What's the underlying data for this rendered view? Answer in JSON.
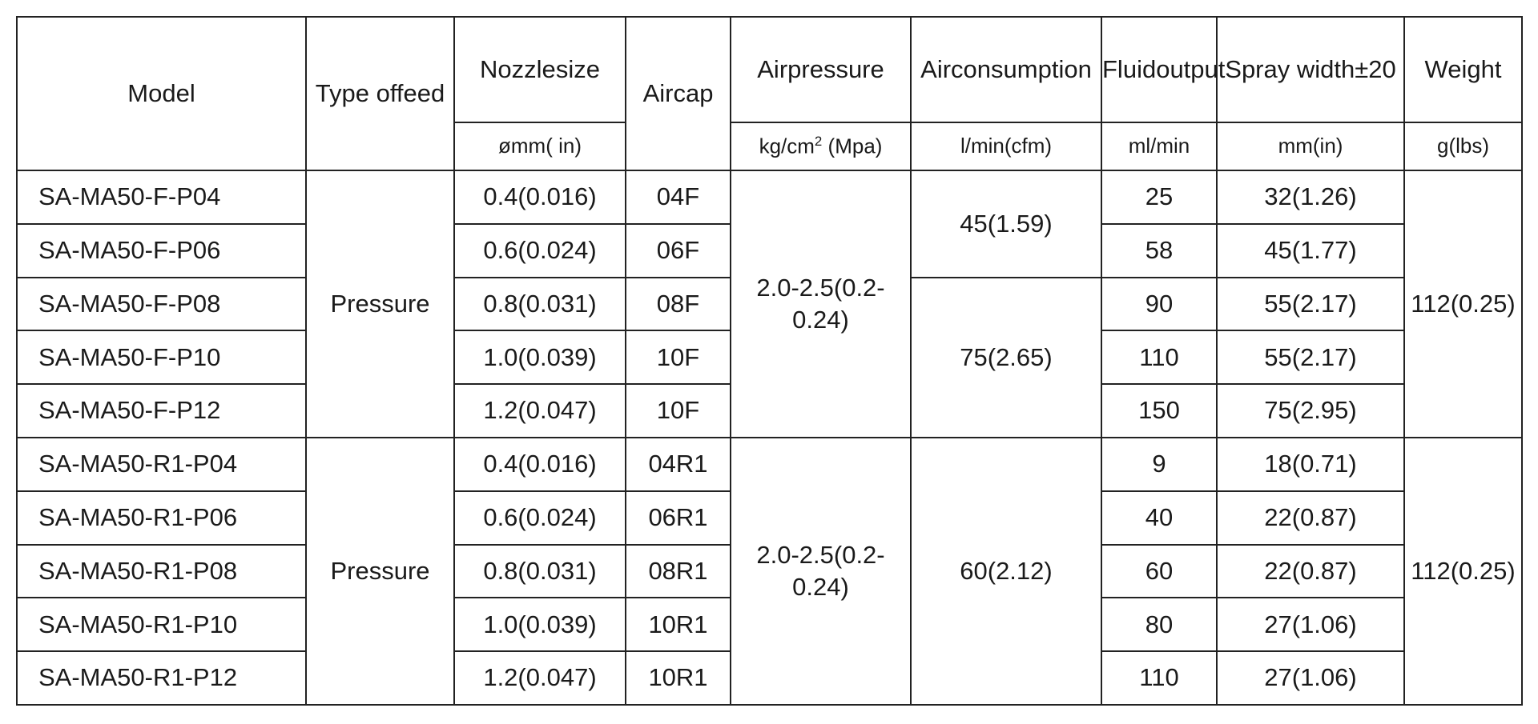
{
  "table": {
    "columns": [
      {
        "label": [
          "Model"
        ]
      },
      {
        "label": [
          "Type of",
          "feed"
        ]
      },
      {
        "label": [
          "Nozzle",
          "size"
        ],
        "unit": "ømm( in)"
      },
      {
        "label": [
          "Air",
          "cap"
        ]
      },
      {
        "label": [
          "Air",
          "pressure"
        ],
        "unit": {
          "base": "kg/cm",
          "sup": "2",
          "rest": " (Mpa)"
        }
      },
      {
        "label": [
          "Air",
          "consumption"
        ],
        "unit": "l/min(cfm)"
      },
      {
        "label": [
          "Fluid",
          "output"
        ],
        "unit": "ml/min"
      },
      {
        "label": [
          "Spray width",
          "±20"
        ],
        "unit": "mm(in)"
      },
      {
        "label": [
          "Weight"
        ],
        "unit": "g(lbs)"
      }
    ],
    "groups": [
      {
        "feed": "Pressure",
        "air_pressure": [
          "2.0-2.5",
          "(0.2-0.24)"
        ],
        "weight": [
          "112",
          "(0.25)"
        ],
        "rows": [
          {
            "model": "SA-MA50-F-P04",
            "nozzle": "0.4(0.016)",
            "cap": "04F",
            "air_consumption": "45(1.59)",
            "fluid": "25",
            "spray": "32(1.26)"
          },
          {
            "model": "SA-MA50-F-P06",
            "nozzle": "0.6(0.024)",
            "cap": "06F",
            "fluid": "58",
            "spray": "45(1.77)"
          },
          {
            "model": "SA-MA50-F-P08",
            "nozzle": "0.8(0.031)",
            "cap": "08F",
            "air_consumption": "75(2.65)",
            "fluid": "90",
            "spray": "55(2.17)"
          },
          {
            "model": "SA-MA50-F-P10",
            "nozzle": "1.0(0.039)",
            "cap": "10F",
            "fluid": "110",
            "spray": "55(2.17)"
          },
          {
            "model": "SA-MA50-F-P12",
            "nozzle": "1.2(0.047)",
            "cap": "10F",
            "fluid": "150",
            "spray": "75(2.95)"
          }
        ]
      },
      {
        "feed": "Pressure",
        "air_pressure": [
          "2.0-2.5",
          "(0.2-0.24)"
        ],
        "weight": [
          "112",
          "(0.25)"
        ],
        "rows": [
          {
            "model": "SA-MA50-R1-P04",
            "nozzle": "0.4(0.016)",
            "cap": "04R1",
            "air_consumption": "60(2.12)",
            "fluid": "9",
            "spray": "18(0.71)"
          },
          {
            "model": "SA-MA50-R1-P06",
            "nozzle": "0.6(0.024)",
            "cap": "06R1",
            "fluid": "40",
            "spray": "22(0.87)"
          },
          {
            "model": "SA-MA50-R1-P08",
            "nozzle": "0.8(0.031)",
            "cap": "08R1",
            "fluid": "60",
            "spray": "22(0.87)"
          },
          {
            "model": "SA-MA50-R1-P10",
            "nozzle": "1.0(0.039)",
            "cap": "10R1",
            "fluid": "80",
            "spray": "27(1.06)"
          },
          {
            "model": "SA-MA50-R1-P12",
            "nozzle": "1.2(0.047)",
            "cap": "10R1",
            "fluid": "110",
            "spray": "27(1.06)"
          }
        ]
      }
    ]
  }
}
